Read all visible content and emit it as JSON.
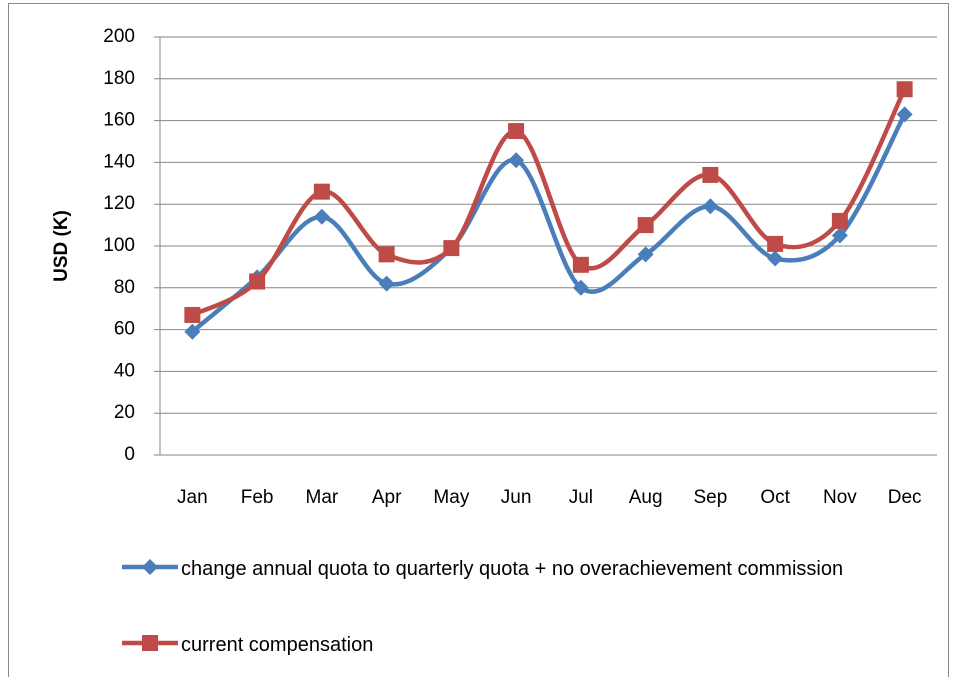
{
  "chart_data": {
    "type": "line",
    "y_label": "USD (K)",
    "categories": [
      "Jan",
      "Feb",
      "Mar",
      "Apr",
      "May",
      "Jun",
      "Jul",
      "Aug",
      "Sep",
      "Oct",
      "Nov",
      "Dec"
    ],
    "series": [
      {
        "name": "change annual quota to quarterly quota + no overachievement commission",
        "color": "#4a7ebb",
        "marker": "diamond",
        "values": [
          59,
          85,
          114,
          82,
          99,
          141,
          80,
          96,
          119,
          94,
          105,
          163
        ]
      },
      {
        "name": "current compensation",
        "color": "#be4b48",
        "marker": "square",
        "values": [
          67,
          83,
          126,
          96,
          99,
          155,
          91,
          110,
          134,
          101,
          112,
          175
        ]
      }
    ],
    "ylim": [
      0,
      200
    ],
    "yticks": [
      0,
      20,
      40,
      60,
      80,
      100,
      120,
      140,
      160,
      180,
      200
    ],
    "grid": true,
    "smooth": true,
    "legend": "bottom"
  }
}
